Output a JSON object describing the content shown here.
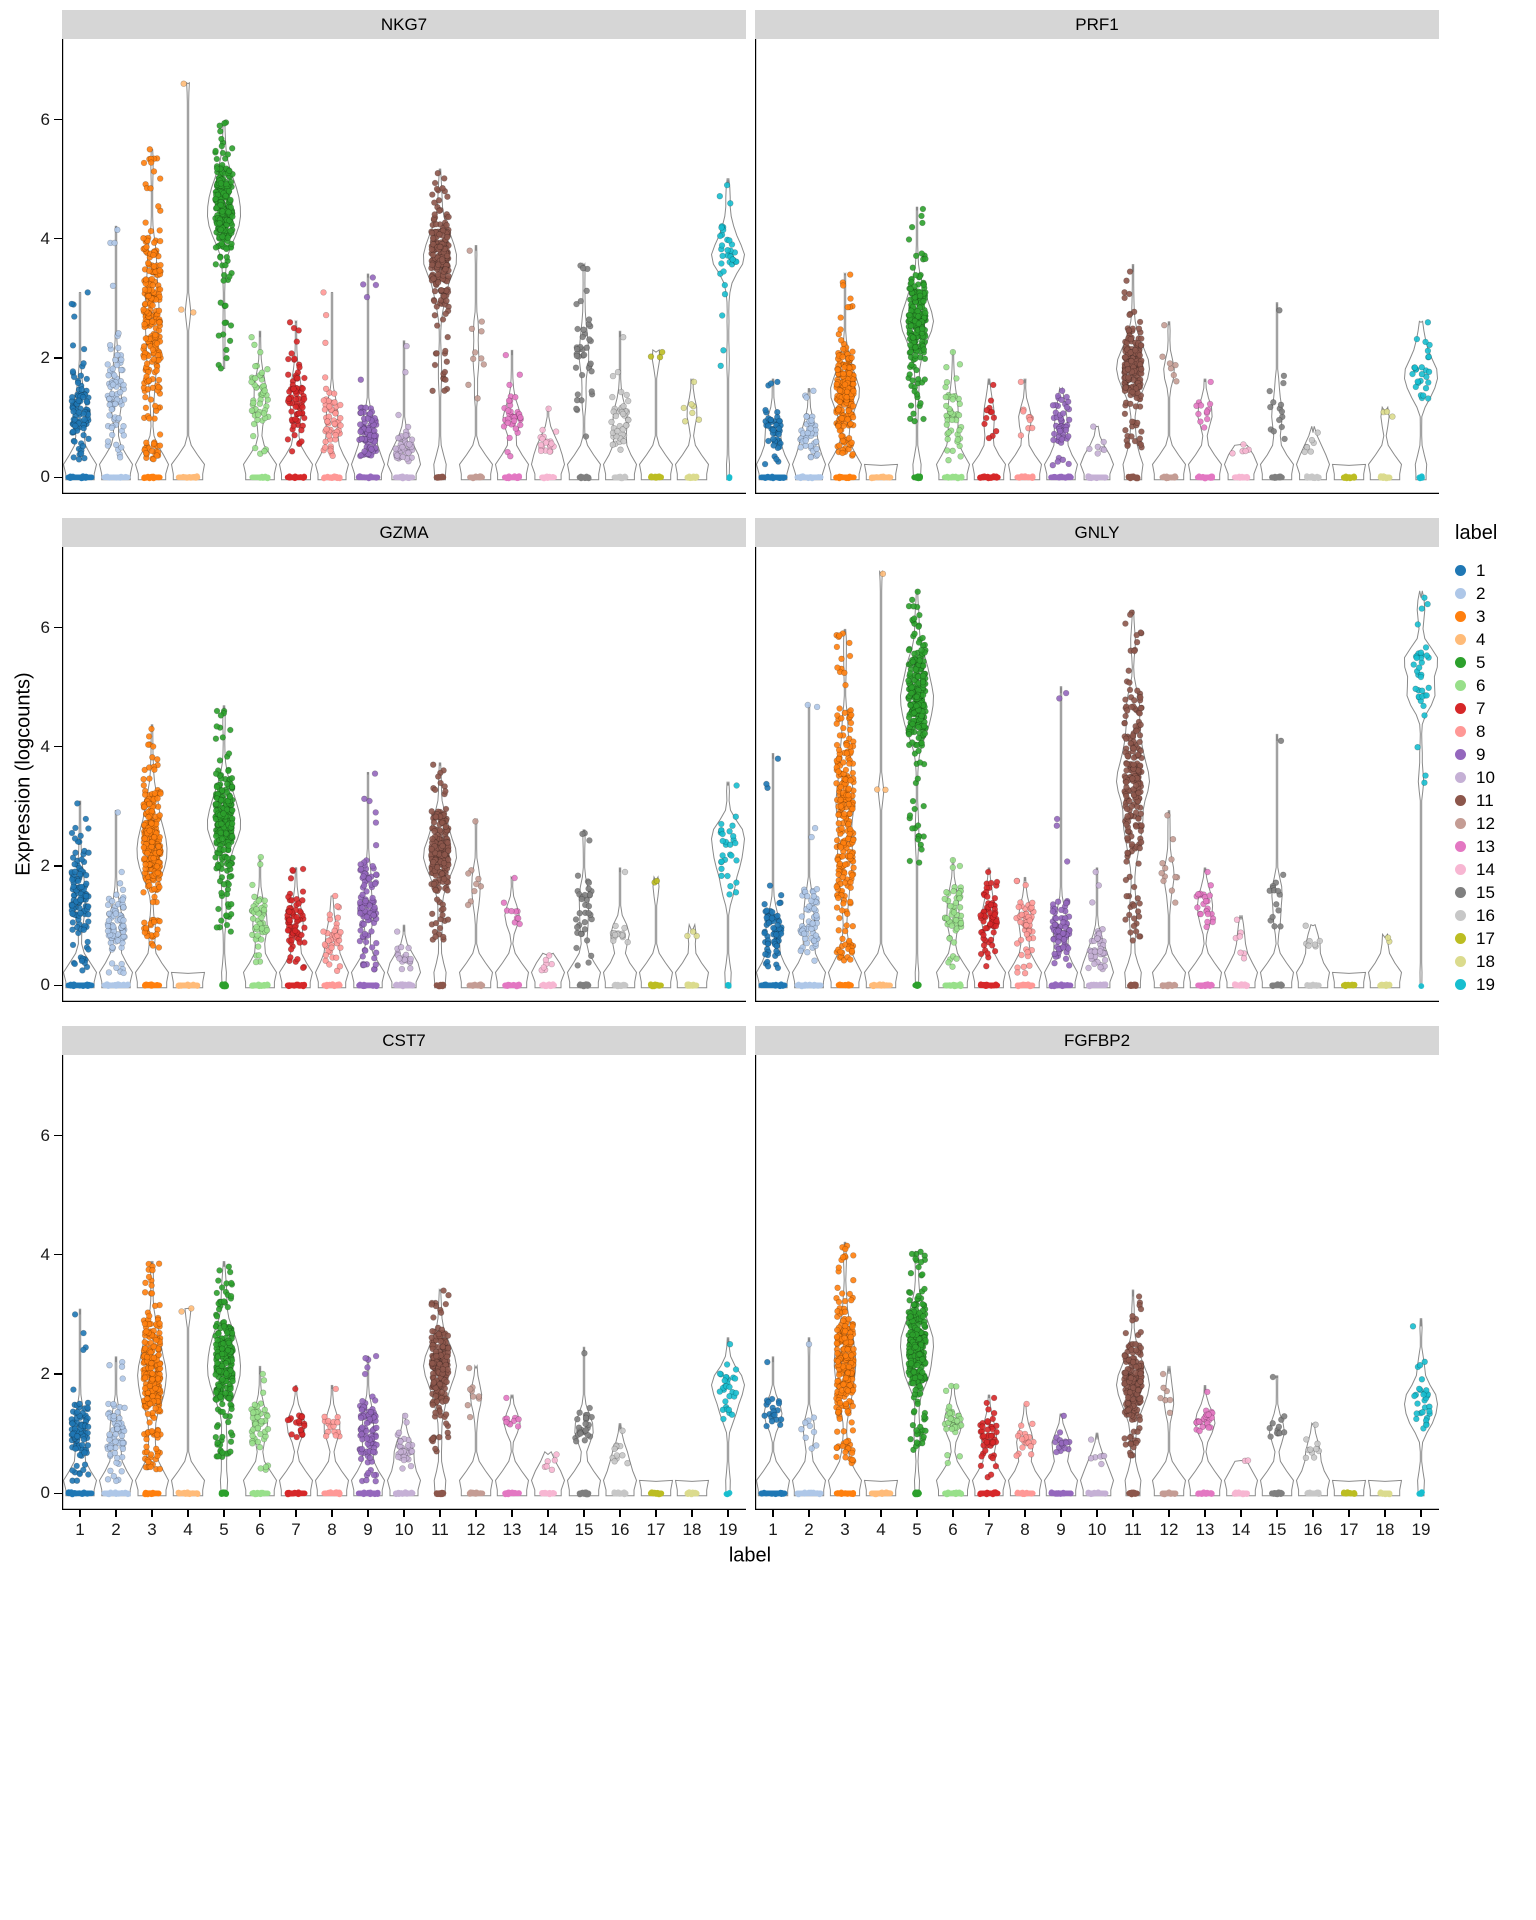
{
  "chart_data": {
    "type": "violin",
    "description": "Faceted violin + jitter plots of single-cell gene expression (logcounts) per cluster label 1-19 for six genes",
    "ylabel": "Expression (logcounts)",
    "xlabel": "label",
    "legend_title": "label",
    "y_ticks": [
      0,
      2,
      4,
      6
    ],
    "y_range": [
      -0.28,
      7.35
    ],
    "clusters": [
      "1",
      "2",
      "3",
      "4",
      "5",
      "6",
      "7",
      "8",
      "9",
      "10",
      "11",
      "12",
      "13",
      "14",
      "15",
      "16",
      "17",
      "18",
      "19"
    ],
    "palette": [
      "#1f77b4",
      "#aec7e8",
      "#ff7f0e",
      "#ffbb78",
      "#2ca02c",
      "#98df8a",
      "#d62728",
      "#ff9896",
      "#9467bd",
      "#c5b0d5",
      "#8c564b",
      "#c49c94",
      "#e377c2",
      "#f7b6d2",
      "#7f7f7f",
      "#c7c7c7",
      "#bcbd22",
      "#dbdb8d",
      "#17becf"
    ],
    "stats_format": [
      "max_expression",
      "bulk_low",
      "bulk_high",
      "n_expressing_points",
      "n_zero_points"
    ],
    "facets": [
      {
        "title": "NKG7",
        "stats": [
          [
            3.1,
            0.2,
            2.0,
            120,
            200
          ],
          [
            4.15,
            0.2,
            2.4,
            100,
            200
          ],
          [
            5.5,
            0.6,
            4.8,
            300,
            120
          ],
          [
            6.6,
            2.75,
            2.85,
            2,
            150
          ],
          [
            5.95,
            3.6,
            5.4,
            280,
            0
          ],
          [
            2.35,
            0.7,
            2.0,
            60,
            120
          ],
          [
            2.6,
            0.3,
            2.2,
            90,
            130
          ],
          [
            3.1,
            0.3,
            1.6,
            70,
            120
          ],
          [
            3.35,
            0.2,
            1.3,
            110,
            150
          ],
          [
            2.2,
            0.1,
            0.9,
            60,
            130
          ],
          [
            5.1,
            2.8,
            4.6,
            260,
            40
          ],
          [
            3.8,
            1.2,
            3.0,
            12,
            90
          ],
          [
            2.05,
            0.7,
            1.5,
            40,
            110
          ],
          [
            1.15,
            0.3,
            0.8,
            25,
            90
          ],
          [
            3.55,
            1.2,
            3.3,
            45,
            60
          ],
          [
            2.35,
            0.3,
            1.6,
            50,
            80
          ],
          [
            2.1,
            2.0,
            2.1,
            2,
            70
          ],
          [
            1.6,
            0.9,
            1.3,
            8,
            60
          ],
          [
            4.9,
            2.9,
            4.4,
            40,
            2
          ]
        ]
      },
      {
        "title": "PRF1",
        "stats": [
          [
            1.6,
            0.2,
            1.3,
            60,
            220
          ],
          [
            1.45,
            0.2,
            1.2,
            50,
            210
          ],
          [
            3.4,
            0.7,
            2.2,
            280,
            140
          ],
          [
            0,
            0,
            0,
            0,
            150
          ],
          [
            4.5,
            1.8,
            3.5,
            270,
            30
          ],
          [
            2.1,
            0.5,
            1.8,
            50,
            130
          ],
          [
            1.55,
            0.5,
            1.4,
            15,
            140
          ],
          [
            1.6,
            0.5,
            1.4,
            12,
            120
          ],
          [
            1.45,
            0.4,
            1.4,
            60,
            160
          ],
          [
            0.85,
            0.3,
            0.7,
            8,
            140
          ],
          [
            3.45,
            1.0,
            2.6,
            220,
            60
          ],
          [
            2.55,
            1.5,
            2.3,
            8,
            100
          ],
          [
            1.6,
            0.8,
            1.3,
            15,
            110
          ],
          [
            0.55,
            0.3,
            0.5,
            5,
            95
          ],
          [
            2.8,
            0.5,
            1.8,
            18,
            70
          ],
          [
            0.75,
            0.4,
            0.7,
            8,
            85
          ],
          [
            0,
            0,
            0,
            0,
            75
          ],
          [
            1.1,
            1.0,
            1.1,
            2,
            60
          ],
          [
            2.6,
            1.1,
            2.4,
            35,
            6
          ]
        ]
      },
      {
        "title": "GZMA",
        "stats": [
          [
            3.05,
            0.5,
            2.5,
            140,
            190
          ],
          [
            2.9,
            0.4,
            1.6,
            90,
            200
          ],
          [
            4.3,
            1.2,
            3.6,
            300,
            110
          ],
          [
            0,
            0,
            0,
            0,
            150
          ],
          [
            4.6,
            1.8,
            3.7,
            280,
            15
          ],
          [
            2.15,
            0.6,
            1.6,
            55,
            120
          ],
          [
            1.95,
            0.5,
            1.6,
            80,
            130
          ],
          [
            1.5,
            0.4,
            1.3,
            40,
            120
          ],
          [
            3.55,
            0.5,
            2.2,
            120,
            140
          ],
          [
            0.9,
            0.2,
            0.7,
            25,
            130
          ],
          [
            3.7,
            1.5,
            3.1,
            250,
            40
          ],
          [
            2.75,
            1.2,
            2.0,
            10,
            95
          ],
          [
            1.8,
            1.0,
            1.5,
            12,
            105
          ],
          [
            0.5,
            0.2,
            0.45,
            8,
            90
          ],
          [
            2.55,
            0.5,
            2.0,
            40,
            60
          ],
          [
            1.9,
            0.4,
            1.2,
            20,
            80
          ],
          [
            1.75,
            1.7,
            1.75,
            1,
            72
          ],
          [
            0.9,
            0.8,
            0.9,
            2,
            60
          ],
          [
            3.35,
            1.4,
            3.0,
            38,
            3
          ]
        ]
      },
      {
        "title": "GNLY",
        "stats": [
          [
            3.8,
            0.2,
            1.6,
            90,
            210
          ],
          [
            4.7,
            0.3,
            1.8,
            80,
            200
          ],
          [
            5.9,
            0.8,
            5.2,
            300,
            90
          ],
          [
            6.9,
            2.3,
            6.05,
            2,
            145
          ],
          [
            6.6,
            3.8,
            6.0,
            280,
            10
          ],
          [
            2.1,
            0.6,
            1.9,
            60,
            120
          ],
          [
            1.9,
            0.6,
            1.8,
            80,
            130
          ],
          [
            1.75,
            0.4,
            1.5,
            60,
            115
          ],
          [
            4.9,
            0.3,
            1.5,
            100,
            150
          ],
          [
            1.9,
            0.2,
            1.0,
            55,
            130
          ],
          [
            6.25,
            1.5,
            5.5,
            250,
            30
          ],
          [
            2.85,
            1.2,
            2.5,
            14,
            95
          ],
          [
            1.9,
            0.9,
            1.7,
            30,
            105
          ],
          [
            1.1,
            0.4,
            1.0,
            8,
            90
          ],
          [
            4.1,
            0.8,
            2.0,
            18,
            68
          ],
          [
            1.0,
            0.5,
            0.9,
            8,
            85
          ],
          [
            0,
            0,
            0,
            0,
            75
          ],
          [
            0.8,
            0.7,
            0.8,
            1,
            62
          ],
          [
            6.5,
            4.4,
            6.2,
            40,
            1
          ]
        ]
      },
      {
        "title": "CST7",
        "stats": [
          [
            3.0,
            0.4,
            1.6,
            110,
            200
          ],
          [
            2.2,
            0.4,
            1.6,
            80,
            200
          ],
          [
            3.85,
            0.8,
            3.2,
            300,
            100
          ],
          [
            3.1,
            3.0,
            3.1,
            1,
            150
          ],
          [
            3.8,
            1.2,
            3.3,
            280,
            20
          ],
          [
            2.0,
            0.7,
            1.6,
            55,
            120
          ],
          [
            1.75,
            0.8,
            1.5,
            25,
            135
          ],
          [
            1.75,
            0.8,
            1.4,
            20,
            120
          ],
          [
            2.3,
            0.4,
            1.8,
            110,
            150
          ],
          [
            1.3,
            0.3,
            1.0,
            40,
            130
          ],
          [
            3.4,
            1.4,
            2.9,
            250,
            40
          ],
          [
            2.1,
            1.2,
            1.9,
            10,
            95
          ],
          [
            1.6,
            1.1,
            1.4,
            12,
            105
          ],
          [
            0.65,
            0.3,
            0.6,
            6,
            90
          ],
          [
            2.35,
            0.8,
            1.5,
            35,
            60
          ],
          [
            1.05,
            0.4,
            0.9,
            15,
            82
          ],
          [
            0,
            0,
            0,
            0,
            75
          ],
          [
            0,
            0,
            0,
            0,
            62
          ],
          [
            2.5,
            1.1,
            2.3,
            38,
            3
          ]
        ]
      },
      {
        "title": "FGFBP2",
        "stats": [
          [
            2.2,
            0.9,
            1.7,
            25,
            215
          ],
          [
            2.5,
            0.6,
            1.5,
            12,
            205
          ],
          [
            4.15,
            0.9,
            3.4,
            280,
            130
          ],
          [
            0,
            0,
            0,
            0,
            150
          ],
          [
            4.05,
            1.4,
            3.6,
            290,
            15
          ],
          [
            1.8,
            0.9,
            1.5,
            40,
            125
          ],
          [
            1.6,
            0.5,
            1.4,
            50,
            135
          ],
          [
            1.5,
            0.5,
            1.2,
            25,
            120
          ],
          [
            1.3,
            0.6,
            1.1,
            20,
            155
          ],
          [
            0.9,
            0.4,
            0.8,
            8,
            135
          ],
          [
            3.3,
            1.1,
            2.6,
            230,
            50
          ],
          [
            2.0,
            1.3,
            1.9,
            8,
            98
          ],
          [
            1.7,
            1.0,
            1.4,
            30,
            100
          ],
          [
            0.55,
            0.5,
            0.55,
            1,
            92
          ],
          [
            1.95,
            0.8,
            1.6,
            15,
            70
          ],
          [
            1.15,
            0.5,
            1.0,
            12,
            83
          ],
          [
            0,
            0,
            0,
            0,
            75
          ],
          [
            0,
            0,
            0,
            0,
            62
          ],
          [
            2.8,
            0.9,
            2.4,
            38,
            4
          ]
        ]
      }
    ]
  }
}
